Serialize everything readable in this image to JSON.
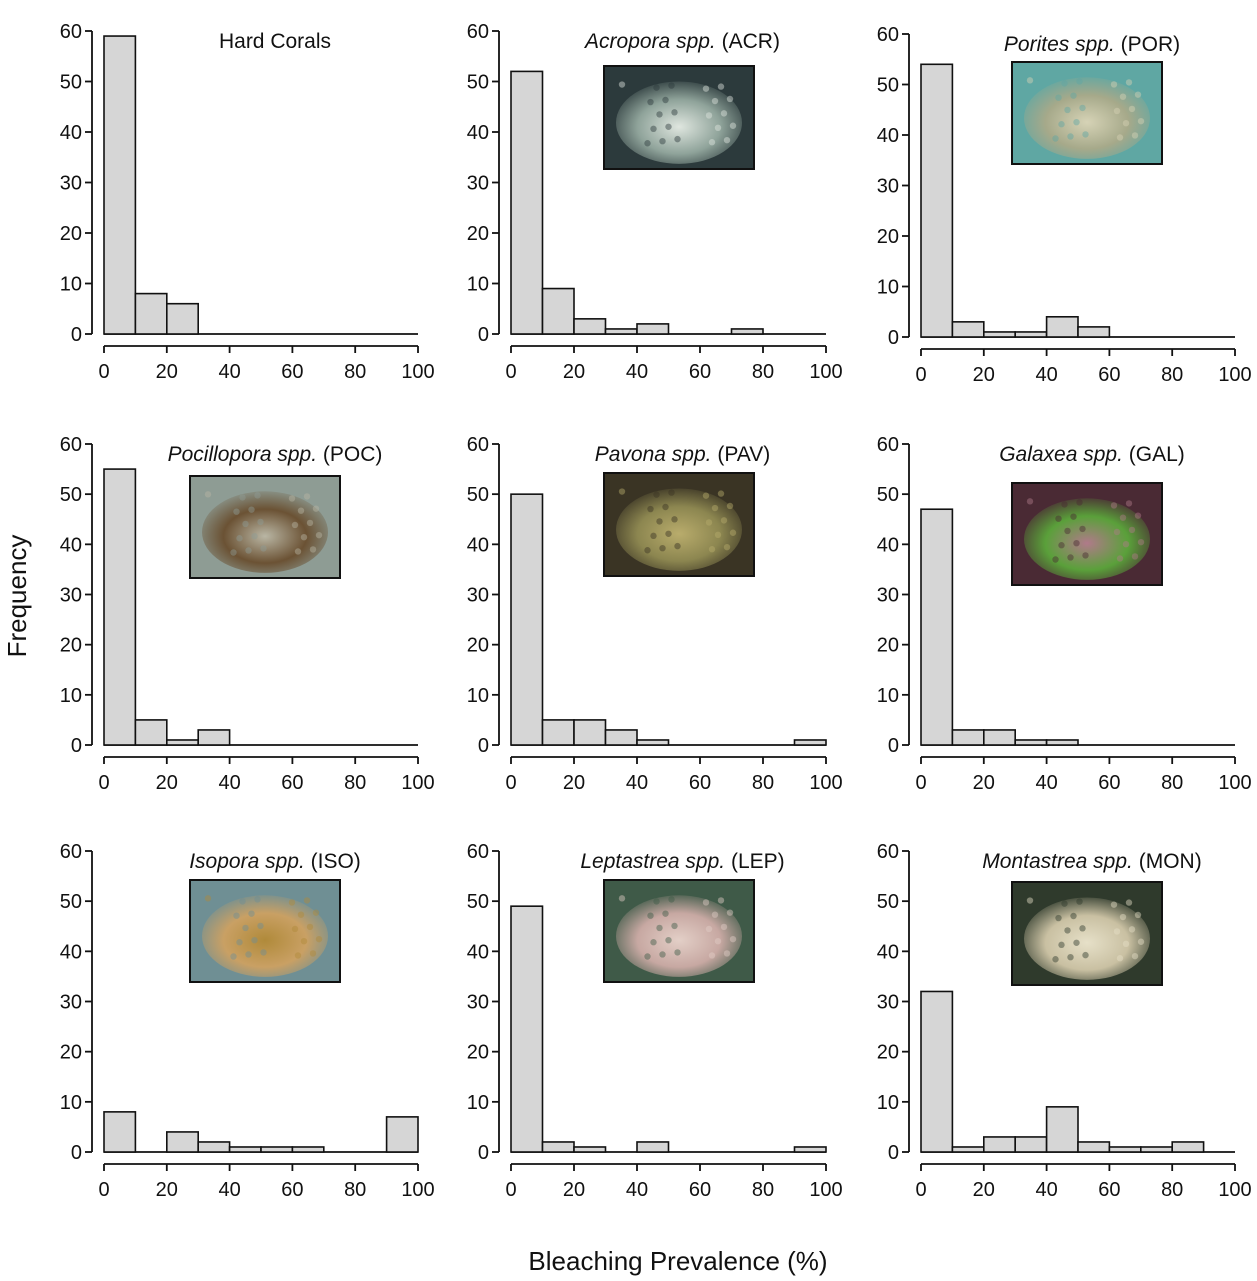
{
  "figure": {
    "ylabel": "Frequency",
    "xlabel": "Bleaching Prevalence (%)"
  },
  "chart_data": [
    {
      "type": "bar",
      "title_genus": "",
      "title_rest": "Hard Corals",
      "photo": "",
      "bin_edges": [
        0,
        10,
        20,
        30,
        40,
        50,
        60,
        70,
        80,
        90,
        100
      ],
      "values": [
        59,
        8,
        6,
        0,
        0,
        0,
        0,
        0,
        0,
        0
      ],
      "xlim": [
        0,
        100
      ],
      "ylim": [
        0,
        60
      ],
      "xticks": [
        0,
        20,
        40,
        60,
        80,
        100
      ],
      "yticks": [
        0,
        10,
        20,
        30,
        40,
        50,
        60
      ]
    },
    {
      "type": "bar",
      "title_genus": "Acropora spp.",
      "title_rest": " (ACR)",
      "photo": "acropora-coral-photo",
      "photo_colors": [
        "#2c3a3c",
        "#8fa39a",
        "#dfe6df"
      ],
      "bin_edges": [
        0,
        10,
        20,
        30,
        40,
        50,
        60,
        70,
        80,
        90,
        100
      ],
      "values": [
        52,
        9,
        3,
        1,
        2,
        0,
        0,
        1,
        0,
        0
      ],
      "xlim": [
        0,
        100
      ],
      "ylim": [
        0,
        60
      ],
      "xticks": [
        0,
        20,
        40,
        60,
        80,
        100
      ],
      "yticks": [
        0,
        10,
        20,
        30,
        40,
        50,
        60
      ]
    },
    {
      "type": "bar",
      "title_genus": "Porites spp.",
      "title_rest": " (POR)",
      "photo": "porites-coral-photo",
      "photo_colors": [
        "#5fa7a3",
        "#a6a98a",
        "#d6d3b6"
      ],
      "bin_edges": [
        0,
        10,
        20,
        30,
        40,
        50,
        60,
        70,
        80,
        90,
        100
      ],
      "values": [
        54,
        3,
        1,
        1,
        4,
        2,
        0,
        0,
        0,
        0
      ],
      "xlim": [
        0,
        100
      ],
      "ylim": [
        0,
        60
      ],
      "xticks": [
        0,
        20,
        40,
        60,
        80,
        100
      ],
      "yticks": [
        0,
        10,
        20,
        30,
        40,
        50,
        60
      ]
    },
    {
      "type": "bar",
      "title_genus": "Pocillopora spp.",
      "title_rest": " (POC)",
      "photo": "pocillopora-coral-photo",
      "photo_colors": [
        "#8e9c94",
        "#6b5234",
        "#b9b6a4"
      ],
      "bin_edges": [
        0,
        10,
        20,
        30,
        40,
        50,
        60,
        70,
        80,
        90,
        100
      ],
      "values": [
        55,
        5,
        1,
        3,
        0,
        0,
        0,
        0,
        0,
        0
      ],
      "xlim": [
        0,
        100
      ],
      "ylim": [
        0,
        60
      ],
      "xticks": [
        0,
        20,
        40,
        60,
        80,
        100
      ],
      "yticks": [
        0,
        10,
        20,
        30,
        40,
        50,
        60
      ]
    },
    {
      "type": "bar",
      "title_genus": "Pavona spp.",
      "title_rest": " (PAV)",
      "photo": "pavona-coral-photo",
      "photo_colors": [
        "#3a3424",
        "#8c8650",
        "#b9ac6c"
      ],
      "bin_edges": [
        0,
        10,
        20,
        30,
        40,
        50,
        60,
        70,
        80,
        90,
        100
      ],
      "values": [
        50,
        5,
        5,
        3,
        1,
        0,
        0,
        0,
        0,
        1
      ],
      "xlim": [
        0,
        100
      ],
      "ylim": [
        0,
        60
      ],
      "xticks": [
        0,
        20,
        40,
        60,
        80,
        100
      ],
      "yticks": [
        0,
        10,
        20,
        30,
        40,
        50,
        60
      ]
    },
    {
      "type": "bar",
      "title_genus": "Galaxea spp.",
      "title_rest": " (GAL)",
      "photo": "galaxea-coral-photo",
      "photo_colors": [
        "#4a2a34",
        "#5aa03a",
        "#b07a8a"
      ],
      "bin_edges": [
        0,
        10,
        20,
        30,
        40,
        50,
        60,
        70,
        80,
        90,
        100
      ],
      "values": [
        47,
        3,
        3,
        1,
        1,
        0,
        0,
        0,
        0,
        0
      ],
      "xlim": [
        0,
        100
      ],
      "ylim": [
        0,
        60
      ],
      "xticks": [
        0,
        20,
        40,
        60,
        80,
        100
      ],
      "yticks": [
        0,
        10,
        20,
        30,
        40,
        50,
        60
      ]
    },
    {
      "type": "bar",
      "title_genus": "Isopora spp.",
      "title_rest": " (ISO)",
      "photo": "isopora-coral-photo",
      "photo_colors": [
        "#6f8f94",
        "#c9a064",
        "#b08a3a"
      ],
      "bin_edges": [
        0,
        10,
        20,
        30,
        40,
        50,
        60,
        70,
        80,
        90,
        100
      ],
      "values": [
        8,
        0,
        4,
        2,
        1,
        1,
        1,
        0,
        0,
        7
      ],
      "xlim": [
        0,
        100
      ],
      "ylim": [
        0,
        60
      ],
      "xticks": [
        0,
        20,
        40,
        60,
        80,
        100
      ],
      "yticks": [
        0,
        10,
        20,
        30,
        40,
        50,
        60
      ]
    },
    {
      "type": "bar",
      "title_genus": "Leptastrea spp.",
      "title_rest": " (LEP)",
      "photo": "leptastrea-coral-photo",
      "photo_colors": [
        "#3f5a48",
        "#c7a8a2",
        "#e3cfc7"
      ],
      "bin_edges": [
        0,
        10,
        20,
        30,
        40,
        50,
        60,
        70,
        80,
        90,
        100
      ],
      "values": [
        49,
        2,
        1,
        0,
        2,
        0,
        0,
        0,
        0,
        1
      ],
      "xlim": [
        0,
        100
      ],
      "ylim": [
        0,
        60
      ],
      "xticks": [
        0,
        20,
        40,
        60,
        80,
        100
      ],
      "yticks": [
        0,
        10,
        20,
        30,
        40,
        50,
        60
      ]
    },
    {
      "type": "bar",
      "title_genus": "Montastrea spp.",
      "title_rest": " (MON)",
      "photo": "montastrea-coral-photo",
      "photo_colors": [
        "#2f3a2c",
        "#c9c0a2",
        "#e6e0c8"
      ],
      "bin_edges": [
        0,
        10,
        20,
        30,
        40,
        50,
        60,
        70,
        80,
        90,
        100
      ],
      "values": [
        32,
        1,
        3,
        3,
        9,
        2,
        1,
        1,
        2,
        0
      ],
      "xlim": [
        0,
        100
      ],
      "ylim": [
        0,
        60
      ],
      "xticks": [
        0,
        20,
        40,
        60,
        80,
        100
      ],
      "yticks": [
        0,
        10,
        20,
        30,
        40,
        50,
        60
      ]
    }
  ]
}
